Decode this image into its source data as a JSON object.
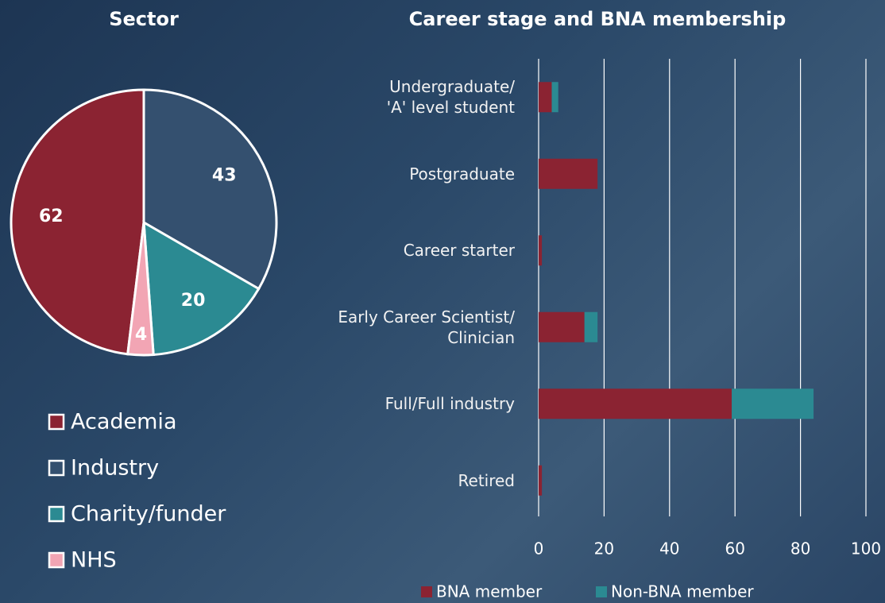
{
  "chart_data": [
    {
      "type": "pie",
      "title": "Sector",
      "categories": [
        "Academia",
        "Industry",
        "Charity/funder",
        "NHS"
      ],
      "values": [
        62,
        43,
        20,
        4
      ],
      "colors": [
        "#8b2332",
        "#34506f",
        "#2b8a92",
        "#f2a5b4"
      ],
      "legend_position": "bottom"
    },
    {
      "type": "bar",
      "orientation": "horizontal",
      "stacked": true,
      "title": "Career stage and BNA membership",
      "categories": [
        "Undergraduate/\n'A' level student",
        "Postgraduate",
        "Career starter",
        "Early Career Scientist/\nClinician",
        "Full/Full industry",
        "Retired"
      ],
      "series": [
        {
          "name": "BNA member",
          "color": "#8b2332",
          "values": [
            4,
            18,
            1,
            14,
            59,
            1
          ]
        },
        {
          "name": "Non-BNA member",
          "color": "#2b8a92",
          "values": [
            2,
            0,
            0,
            4,
            25,
            0
          ]
        }
      ],
      "xlim": [
        0,
        100
      ],
      "xticks": [
        0,
        20,
        40,
        60,
        80,
        100
      ],
      "grid": true,
      "legend_position": "bottom"
    }
  ]
}
